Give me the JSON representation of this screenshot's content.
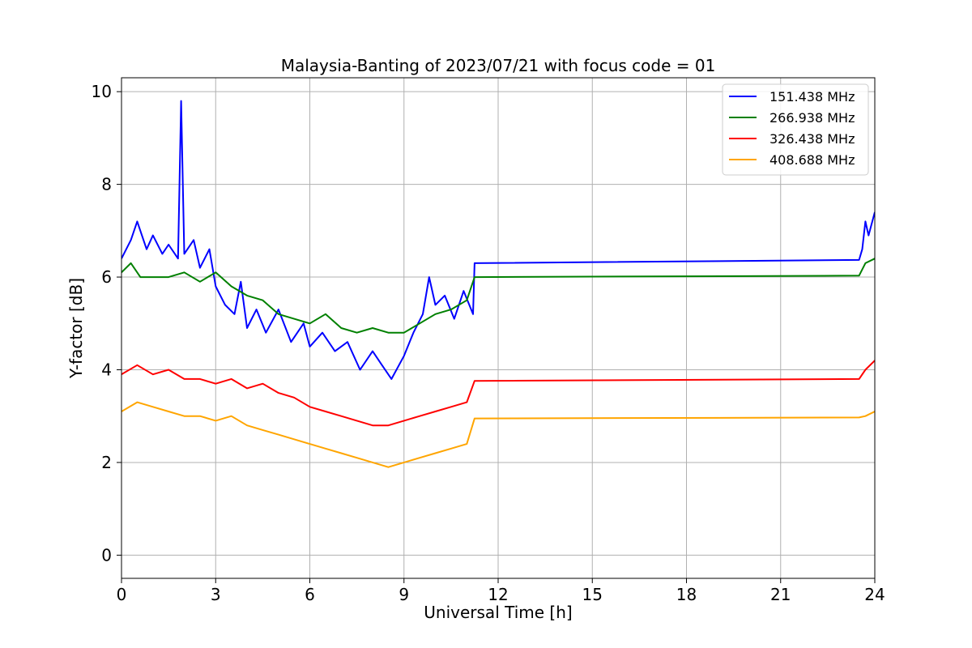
{
  "chart_data": {
    "type": "line",
    "title": "Malaysia-Banting of 2023/07/21 with focus code = 01",
    "xlabel": "Universal Time [h]",
    "ylabel": "Y-factor [dB]",
    "xlim": [
      0,
      24
    ],
    "ylim": [
      -0.5,
      10.3
    ],
    "xticks": [
      0,
      3,
      6,
      9,
      12,
      15,
      18,
      21,
      24
    ],
    "xtick_labels": [
      "0",
      "3",
      "6",
      "9",
      "12",
      "15",
      "18",
      "21",
      "24"
    ],
    "yticks": [
      0,
      2,
      4,
      6,
      8,
      10
    ],
    "ytick_labels": [
      "0",
      "2",
      "4",
      "6",
      "8",
      "10"
    ],
    "grid": true,
    "legend_position": "top-right",
    "series": [
      {
        "name": "151.438 MHz",
        "color": "#0000ff",
        "x": [
          0,
          0.3,
          0.5,
          0.8,
          1.0,
          1.3,
          1.5,
          1.8,
          1.9,
          2.0,
          2.3,
          2.5,
          2.8,
          3.0,
          3.3,
          3.6,
          3.8,
          4.0,
          4.3,
          4.6,
          5.0,
          5.4,
          5.8,
          6.0,
          6.4,
          6.8,
          7.2,
          7.6,
          8.0,
          8.3,
          8.6,
          9.0,
          9.3,
          9.6,
          9.8,
          10.0,
          10.3,
          10.6,
          10.9,
          11.2,
          11.25,
          23.5,
          23.6,
          23.7,
          23.8,
          24.0
        ],
        "y": [
          6.4,
          6.8,
          7.2,
          6.6,
          6.9,
          6.5,
          6.7,
          6.4,
          9.8,
          6.5,
          6.8,
          6.2,
          6.6,
          5.8,
          5.4,
          5.2,
          5.9,
          4.9,
          5.3,
          4.8,
          5.3,
          4.6,
          5.0,
          4.5,
          4.8,
          4.4,
          4.6,
          4.0,
          4.4,
          4.1,
          3.8,
          4.3,
          4.8,
          5.2,
          6.0,
          5.4,
          5.6,
          5.1,
          5.7,
          5.2,
          6.3,
          6.37,
          6.6,
          7.2,
          6.9,
          7.4
        ]
      },
      {
        "name": "266.938 MHz",
        "color": "#008000",
        "x": [
          0,
          0.3,
          0.6,
          1.0,
          1.5,
          2.0,
          2.5,
          3.0,
          3.5,
          4.0,
          4.5,
          5.0,
          5.5,
          6.0,
          6.5,
          7.0,
          7.5,
          8.0,
          8.5,
          9.0,
          9.5,
          10.0,
          10.5,
          11.0,
          11.25,
          23.5,
          23.7,
          24.0
        ],
        "y": [
          6.1,
          6.3,
          6.0,
          6.0,
          6.0,
          6.1,
          5.9,
          6.1,
          5.8,
          5.6,
          5.5,
          5.2,
          5.1,
          5.0,
          5.2,
          4.9,
          4.8,
          4.9,
          4.8,
          4.8,
          5.0,
          5.2,
          5.3,
          5.5,
          6.0,
          6.03,
          6.3,
          6.4
        ]
      },
      {
        "name": "326.438 MHz",
        "color": "#ff0000",
        "x": [
          0,
          0.5,
          1.0,
          1.5,
          2.0,
          2.5,
          3.0,
          3.5,
          4.0,
          4.5,
          5.0,
          5.5,
          6.0,
          6.5,
          7.0,
          7.5,
          8.0,
          8.5,
          9.0,
          9.5,
          10.0,
          10.5,
          11.0,
          11.25,
          23.5,
          23.7,
          24.0
        ],
        "y": [
          3.9,
          4.1,
          3.9,
          4.0,
          3.8,
          3.8,
          3.7,
          3.8,
          3.6,
          3.7,
          3.5,
          3.4,
          3.2,
          3.1,
          3.0,
          2.9,
          2.8,
          2.8,
          2.9,
          3.0,
          3.1,
          3.2,
          3.3,
          3.76,
          3.8,
          4.0,
          4.2
        ]
      },
      {
        "name": "408.688 MHz",
        "color": "#ffa500",
        "x": [
          0,
          0.5,
          1.0,
          1.5,
          2.0,
          2.5,
          3.0,
          3.5,
          4.0,
          4.5,
          5.0,
          5.5,
          6.0,
          6.5,
          7.0,
          7.5,
          8.0,
          8.5,
          9.0,
          9.5,
          10.0,
          10.5,
          11.0,
          11.25,
          23.5,
          23.7,
          24.0
        ],
        "y": [
          3.1,
          3.3,
          3.2,
          3.1,
          3.0,
          3.0,
          2.9,
          3.0,
          2.8,
          2.7,
          2.6,
          2.5,
          2.4,
          2.3,
          2.2,
          2.1,
          2.0,
          1.9,
          2.0,
          2.1,
          2.2,
          2.3,
          2.4,
          2.95,
          2.97,
          3.0,
          3.1
        ]
      }
    ]
  }
}
